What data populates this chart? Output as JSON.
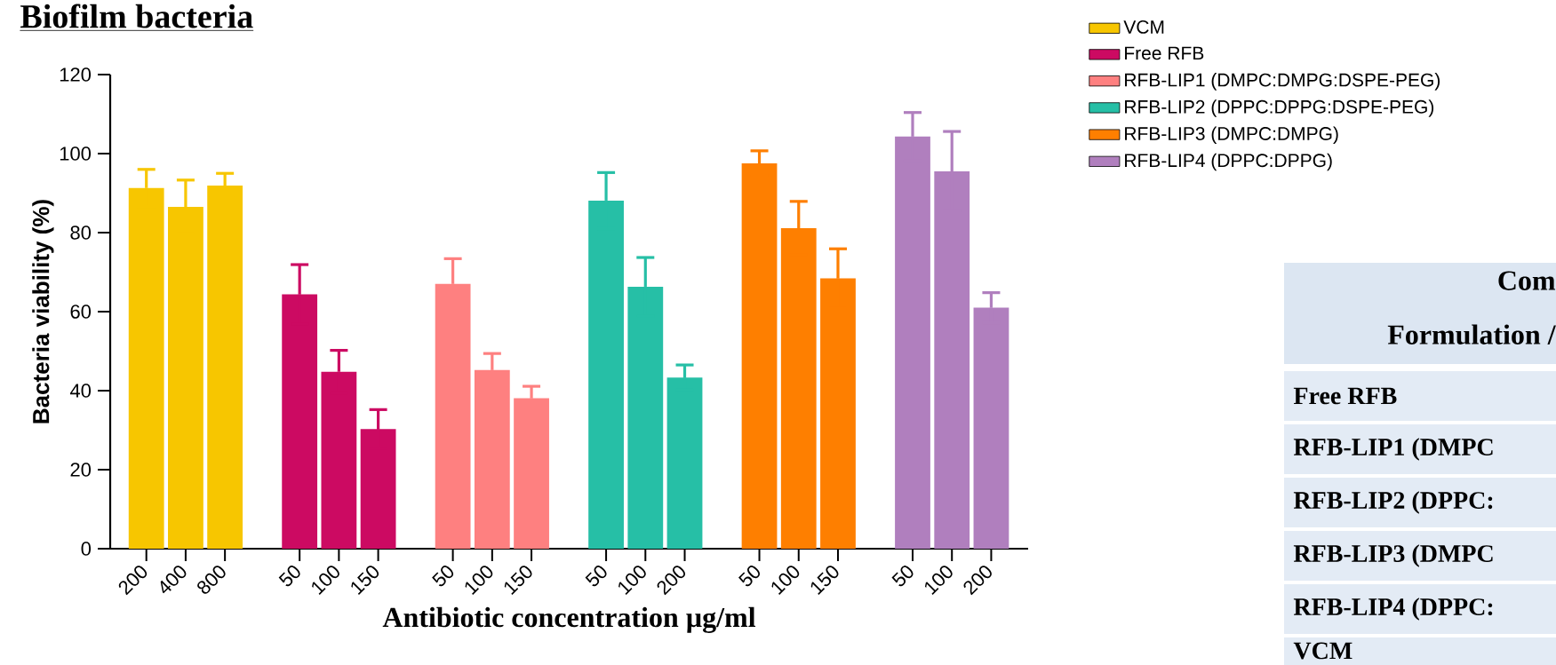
{
  "chart_data": {
    "type": "bar",
    "title": "Biofilm bacteria",
    "xlabel": "Antibiotic concentration µg/ml",
    "ylabel": "Bacteria viability (%)",
    "categories": [
      "200",
      "400",
      "800",
      "50",
      "100",
      "150",
      "50",
      "100",
      "150",
      "50",
      "100",
      "200",
      "50",
      "100",
      "150",
      "50",
      "100",
      "200"
    ],
    "series": [
      {
        "name": "VCM",
        "color": "#f7c600",
        "values": [
          91.3,
          86.5,
          91.9,
          null,
          null,
          null,
          null,
          null,
          null,
          null,
          null,
          null,
          null,
          null,
          null,
          null,
          null,
          null
        ],
        "errors": [
          4.7,
          6.8,
          3.1,
          null,
          null,
          null,
          null,
          null,
          null,
          null,
          null,
          null,
          null,
          null,
          null,
          null,
          null,
          null
        ]
      },
      {
        "name": "Free RFB",
        "color": "#cc0a62",
        "values": [
          null,
          null,
          null,
          64.4,
          44.8,
          30.3,
          null,
          null,
          null,
          null,
          null,
          null,
          null,
          null,
          null,
          null,
          null,
          null
        ],
        "errors": [
          null,
          null,
          null,
          7.5,
          5.4,
          4.9,
          null,
          null,
          null,
          null,
          null,
          null,
          null,
          null,
          null,
          null,
          null,
          null
        ]
      },
      {
        "name": "RFB-LIP1 (DMPC:DMPG:DSPE-PEG)",
        "color": "#fe8080",
        "values": [
          null,
          null,
          null,
          null,
          null,
          null,
          67.0,
          45.2,
          38.1,
          null,
          null,
          null,
          null,
          null,
          null,
          null,
          null,
          null
        ],
        "errors": [
          null,
          null,
          null,
          null,
          null,
          null,
          6.4,
          4.2,
          3.0,
          null,
          null,
          null,
          null,
          null,
          null,
          null,
          null,
          null
        ]
      },
      {
        "name": "RFB-LIP2 (DPPC:DPPG:DSPE-PEG)",
        "color": "#26bfa6",
        "values": [
          null,
          null,
          null,
          null,
          null,
          null,
          null,
          null,
          null,
          88.1,
          66.3,
          43.3,
          null,
          null,
          null,
          null,
          null,
          null
        ],
        "errors": [
          null,
          null,
          null,
          null,
          null,
          null,
          null,
          null,
          null,
          7.1,
          7.4,
          3.2,
          null,
          null,
          null,
          null,
          null,
          null
        ]
      },
      {
        "name": "RFB-LIP3 (DMPC:DMPG)",
        "color": "#fe7f00",
        "values": [
          null,
          null,
          null,
          null,
          null,
          null,
          null,
          null,
          null,
          null,
          null,
          null,
          97.5,
          81.1,
          68.4,
          null,
          null,
          null
        ],
        "errors": [
          null,
          null,
          null,
          null,
          null,
          null,
          null,
          null,
          null,
          null,
          null,
          null,
          3.2,
          6.8,
          7.5,
          null,
          null,
          null
        ]
      },
      {
        "name": "RFB-LIP4 (DPPC:DPPG)",
        "color": "#b07fbe",
        "values": [
          null,
          null,
          null,
          null,
          null,
          null,
          null,
          null,
          null,
          null,
          null,
          null,
          null,
          null,
          null,
          104.3,
          95.5,
          61.0
        ],
        "errors": [
          null,
          null,
          null,
          null,
          null,
          null,
          null,
          null,
          null,
          null,
          null,
          null,
          null,
          null,
          null,
          6.1,
          10.1,
          3.8
        ]
      }
    ],
    "ylim": [
      0,
      120
    ],
    "yticks": [
      0,
      20,
      40,
      60,
      80,
      100,
      120
    ],
    "legend": "top right",
    "annotations": [
      "Com",
      "Formulation /",
      "Free RFB",
      "RFB-LIP1 (DMPC",
      "RFB-LIP2 (DPPC:",
      "RFB-LIP3 (DMPC",
      "RFB-LIP4 (DPPC:",
      "VCM"
    ]
  }
}
